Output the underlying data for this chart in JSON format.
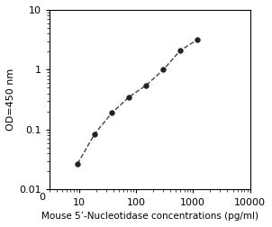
{
  "x": [
    9.375,
    18.75,
    37.5,
    75,
    150,
    300,
    600,
    1200
  ],
  "y": [
    0.027,
    0.085,
    0.19,
    0.35,
    0.55,
    1.0,
    2.1,
    3.2
  ],
  "xlabel": "Mouse 5’-Nucleotidase concentrations (pg/ml)",
  "ylabel": "OD=450 nm",
  "xlim": [
    3,
    10000
  ],
  "ylim": [
    0.01,
    10
  ],
  "xticks_log": [
    10,
    100,
    1000,
    10000
  ],
  "xtick_labels_log": [
    "10",
    "100",
    "1000",
    "10000"
  ],
  "yticks": [
    0.01,
    0.1,
    1,
    10
  ],
  "ytick_labels": [
    "0.01",
    "0.1",
    "1",
    "10"
  ],
  "line_color": "#444444",
  "marker_color": "#222222",
  "marker": "o",
  "marker_size": 4,
  "line_style": "--",
  "line_width": 1.0,
  "xlabel_fontsize": 7.5,
  "ylabel_fontsize": 8,
  "tick_fontsize": 8,
  "background_color": "#ffffff"
}
